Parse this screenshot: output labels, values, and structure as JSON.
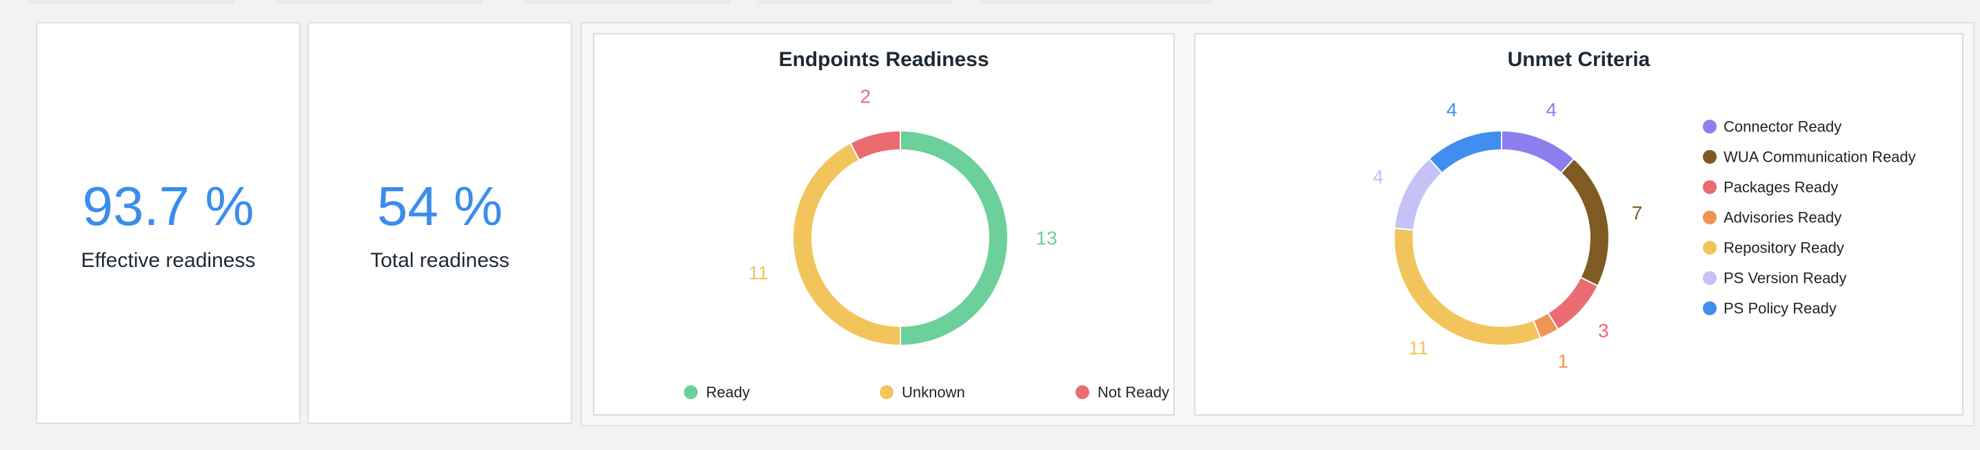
{
  "stats": [
    {
      "value": "93.7 %",
      "label": "Effective readiness"
    },
    {
      "value": "54 %",
      "label": "Total readiness"
    }
  ],
  "chart_data": [
    {
      "type": "pie",
      "title": "Endpoints Readiness",
      "series": [
        {
          "name": "Ready",
          "value": 13,
          "color": "#6bd09a"
        },
        {
          "name": "Unknown",
          "value": 11,
          "color": "#f2c55c"
        },
        {
          "name": "Not Ready",
          "value": 2,
          "color": "#ea6b70"
        }
      ],
      "legend_position": "bottom"
    },
    {
      "type": "pie",
      "title": "Unmet Criteria",
      "series": [
        {
          "name": "Connector Ready",
          "value": 4,
          "color": "#8b7ff0"
        },
        {
          "name": "WUA Communication Ready",
          "value": 7,
          "color": "#7f5a22"
        },
        {
          "name": "Packages Ready",
          "value": 3,
          "color": "#ea6b70"
        },
        {
          "name": "Advisories Ready",
          "value": 1,
          "color": "#ef9457"
        },
        {
          "name": "Repository Ready",
          "value": 11,
          "color": "#f2c55c"
        },
        {
          "name": "PS Version Ready",
          "value": 4,
          "color": "#c5c2f6"
        },
        {
          "name": "PS Policy Ready",
          "value": 4,
          "color": "#3f8ef0"
        }
      ],
      "legend_position": "right"
    }
  ]
}
